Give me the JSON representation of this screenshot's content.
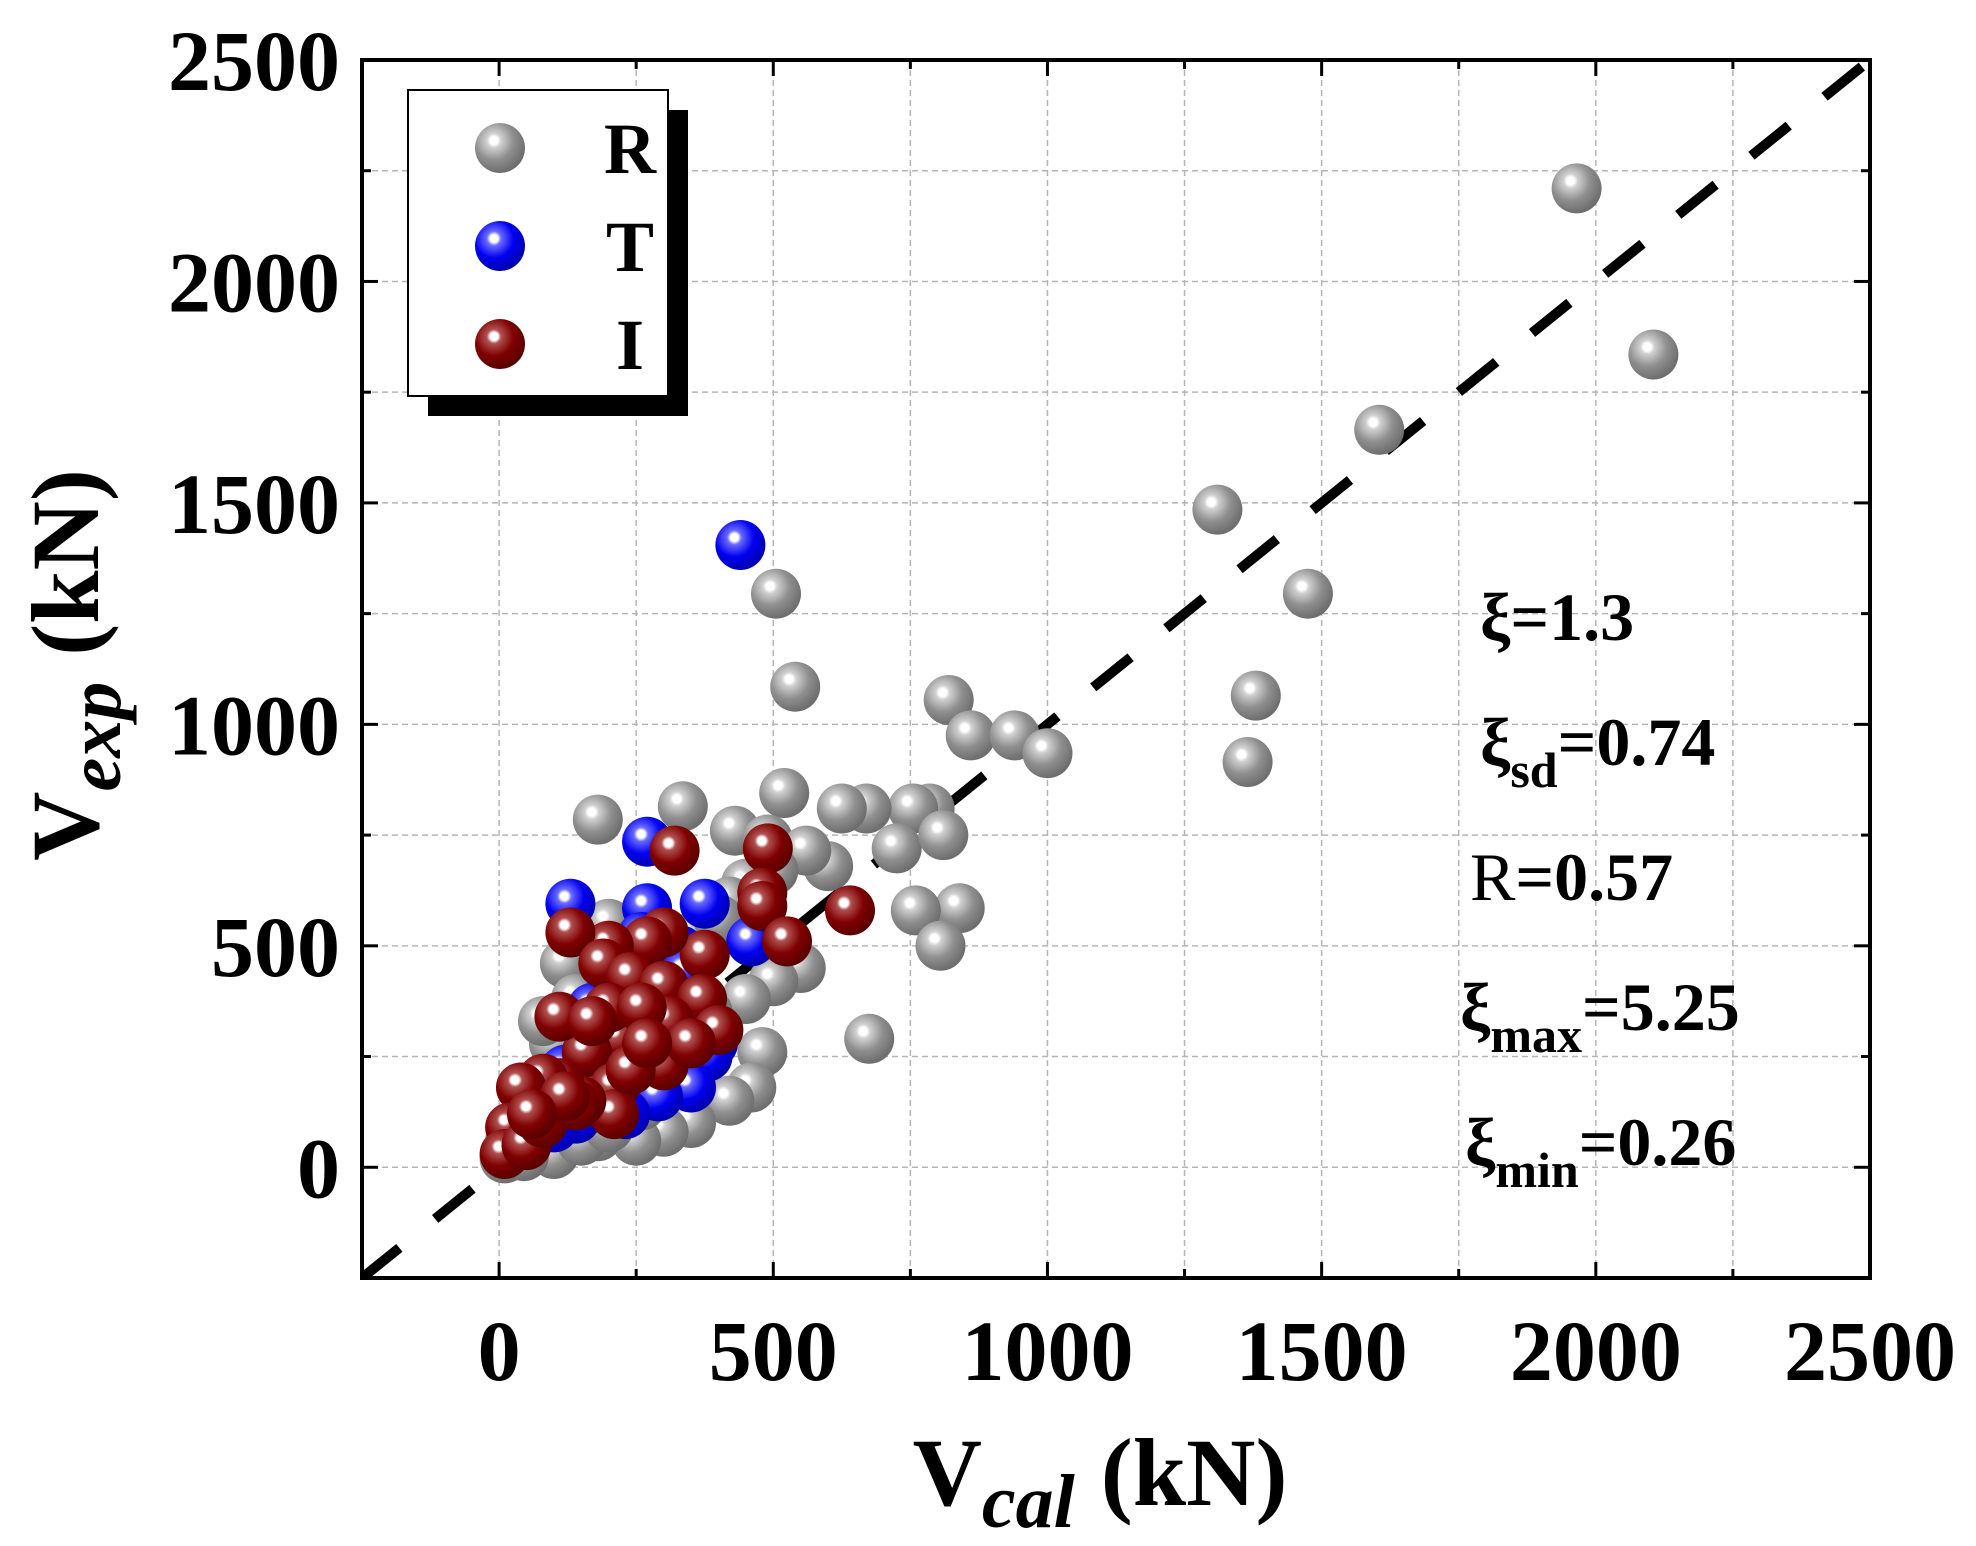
{
  "chart_data": {
    "type": "scatter",
    "title": "",
    "xlabel": {
      "main": "V",
      "sub": "cal",
      "unit": "(kN)"
    },
    "ylabel": {
      "main": "V",
      "sub": "exp",
      "unit": "(kN)"
    },
    "xlim": [
      -250,
      2500
    ],
    "ylim": [
      -250,
      2500
    ],
    "xticks": [
      0,
      500,
      1000,
      1500,
      2000,
      2500
    ],
    "yticks": [
      0,
      500,
      1000,
      1500,
      2000,
      2500
    ],
    "xtick_labels": [
      "0",
      "500",
      "1000",
      "1500",
      "2000",
      "2500"
    ],
    "ytick_labels": [
      "0",
      "500",
      "1000",
      "1500",
      "2000",
      "2500"
    ],
    "grid": true,
    "legend_position": "top-left",
    "reference_line": {
      "style": "dashed",
      "slope": 1,
      "intercept": 0
    },
    "series": [
      {
        "name": "R",
        "color": "#8f8f8f",
        "points": [
          [
            1965,
            2210
          ],
          [
            2105,
            1835
          ],
          [
            1605,
            1665
          ],
          [
            1310,
            1485
          ],
          [
            1475,
            1295
          ],
          [
            1380,
            1065
          ],
          [
            1365,
            915
          ],
          [
            505,
            1295
          ],
          [
            540,
            1085
          ],
          [
            820,
            1055
          ],
          [
            860,
            975
          ],
          [
            940,
            975
          ],
          [
            1000,
            935
          ],
          [
            785,
            810
          ],
          [
            755,
            810
          ],
          [
            670,
            810
          ],
          [
            625,
            810
          ],
          [
            840,
            585
          ],
          [
            760,
            580
          ],
          [
            805,
            500
          ],
          [
            675,
            290
          ],
          [
            600,
            680
          ],
          [
            725,
            720
          ],
          [
            810,
            750
          ],
          [
            520,
            845
          ],
          [
            335,
            815
          ],
          [
            180,
            785
          ],
          [
            430,
            760
          ],
          [
            490,
            740
          ],
          [
            560,
            715
          ],
          [
            500,
            670
          ],
          [
            450,
            640
          ],
          [
            420,
            600
          ],
          [
            550,
            450
          ],
          [
            500,
            420
          ],
          [
            450,
            380
          ],
          [
            480,
            260
          ],
          [
            460,
            180
          ],
          [
            420,
            150
          ],
          [
            350,
            100
          ],
          [
            300,
            80
          ],
          [
            250,
            60
          ],
          [
            180,
            70
          ],
          [
            130,
            80
          ],
          [
            90,
            120
          ],
          [
            60,
            150
          ],
          [
            40,
            180
          ],
          [
            30,
            90
          ],
          [
            60,
            40
          ],
          [
            100,
            30
          ],
          [
            150,
            60
          ],
          [
            200,
            90
          ],
          [
            260,
            140
          ],
          [
            320,
            200
          ],
          [
            370,
            260
          ],
          [
            280,
            300
          ],
          [
            230,
            350
          ],
          [
            160,
            420
          ],
          [
            120,
            460
          ],
          [
            200,
            550
          ],
          [
            260,
            500
          ],
          [
            330,
            430
          ],
          [
            380,
            350
          ],
          [
            300,
            230
          ],
          [
            220,
            200
          ],
          [
            180,
            250
          ],
          [
            100,
            280
          ],
          [
            80,
            330
          ],
          [
            140,
            380
          ],
          [
            350,
            520
          ],
          [
            400,
            560
          ],
          [
            240,
            450
          ],
          [
            20,
            60
          ],
          [
            10,
            20
          ],
          [
            45,
            25
          ]
        ]
      },
      {
        "name": "T",
        "color": "#0000f0",
        "points": [
          [
            440,
            1405
          ],
          [
            270,
            735
          ],
          [
            130,
            595
          ],
          [
            270,
            585
          ],
          [
            375,
            595
          ],
          [
            460,
            510
          ],
          [
            330,
            490
          ],
          [
            210,
            440
          ],
          [
            170,
            360
          ],
          [
            240,
            330
          ],
          [
            390,
            280
          ],
          [
            380,
            250
          ],
          [
            350,
            180
          ],
          [
            290,
            160
          ],
          [
            230,
            120
          ],
          [
            140,
            110
          ],
          [
            90,
            160
          ],
          [
            60,
            100
          ],
          [
            40,
            70
          ],
          [
            300,
            390
          ],
          [
            190,
            280
          ],
          [
            120,
            220
          ],
          [
            260,
            520
          ],
          [
            340,
            440
          ],
          [
            100,
            90
          ]
        ]
      },
      {
        "name": "I",
        "color": "#800000",
        "points": [
          [
            640,
            580
          ],
          [
            490,
            720
          ],
          [
            320,
            715
          ],
          [
            480,
            620
          ],
          [
            480,
            590
          ],
          [
            525,
            510
          ],
          [
            375,
            480
          ],
          [
            300,
            530
          ],
          [
            270,
            510
          ],
          [
            200,
            500
          ],
          [
            130,
            530
          ],
          [
            190,
            460
          ],
          [
            240,
            430
          ],
          [
            300,
            410
          ],
          [
            370,
            380
          ],
          [
            400,
            310
          ],
          [
            310,
            330
          ],
          [
            220,
            290
          ],
          [
            160,
            260
          ],
          [
            110,
            340
          ],
          [
            200,
            360
          ],
          [
            260,
            360
          ],
          [
            300,
            230
          ],
          [
            210,
            180
          ],
          [
            210,
            120
          ],
          [
            150,
            150
          ],
          [
            110,
            190
          ],
          [
            80,
            200
          ],
          [
            40,
            180
          ],
          [
            20,
            90
          ],
          [
            10,
            30
          ],
          [
            50,
            50
          ],
          [
            80,
            100
          ],
          [
            140,
            140
          ],
          [
            170,
            330
          ],
          [
            240,
            220
          ],
          [
            350,
            280
          ],
          [
            270,
            280
          ],
          [
            120,
            160
          ],
          [
            60,
            120
          ]
        ]
      }
    ],
    "stats": [
      {
        "symbol": "ξ",
        "sub": "",
        "value": "=1.3"
      },
      {
        "symbol": "ξ",
        "sub": "sd",
        "value": "=0.74"
      },
      {
        "symbol": "R",
        "sub": "",
        "value": "=0.57"
      },
      {
        "symbol": "ξ",
        "sub": "max",
        "value": "=5.25"
      },
      {
        "symbol": "ξ",
        "sub": "min",
        "value": "=0.26"
      }
    ]
  }
}
